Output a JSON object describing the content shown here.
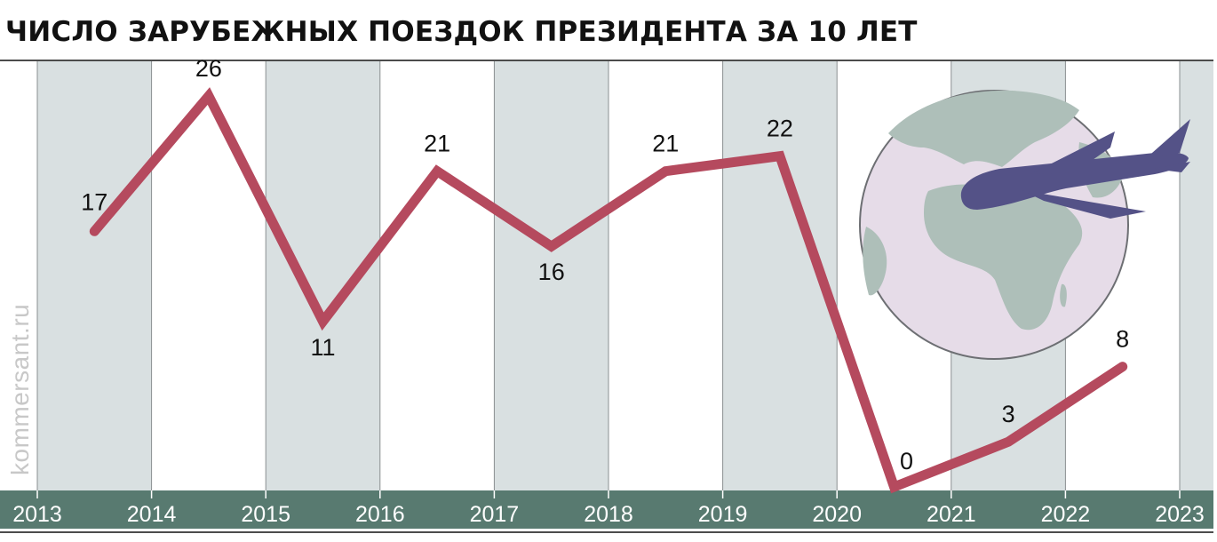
{
  "title": "ЧИСЛО ЗАРУБЕЖНЫХ ПОЕЗДОК ПРЕЗИДЕНТА ЗА 10 ЛЕТ",
  "watermark": "kommersant.ru",
  "colors": {
    "line": "#b54a5e",
    "band_shaded": "#d9e0e1",
    "axis_band": "#587a70",
    "divider": "#8a8f91",
    "globe_fill": "#e6dce8",
    "globe_land": "#aebfb9",
    "globe_outline": "#6d6f73",
    "plane": "#545287"
  },
  "chart_data": {
    "type": "line",
    "title": "ЧИСЛО ЗАРУБЕЖНЫХ ПОЕЗДОК ПРЕЗИДЕНТА ЗА 10 ЛЕТ",
    "x_ticks": [
      "2013",
      "2014",
      "2015",
      "2016",
      "2017",
      "2018",
      "2019",
      "2020",
      "2021",
      "2022",
      "2023"
    ],
    "x": [
      2013.5,
      2014.5,
      2015.5,
      2016.5,
      2017.5,
      2018.5,
      2019.5,
      2020.5,
      2021.5,
      2022.5
    ],
    "values": [
      17,
      26,
      11,
      21,
      16,
      21,
      22,
      0,
      3,
      8
    ],
    "labels": [
      "17",
      "26",
      "11",
      "21",
      "16",
      "21",
      "22",
      "0",
      "3",
      "8"
    ],
    "xlim": [
      2013,
      2023
    ],
    "ylim": [
      0,
      26
    ],
    "grid": "alternating vertical bands per year",
    "legend": "none",
    "icon": "globe-with-airplane-icon"
  }
}
